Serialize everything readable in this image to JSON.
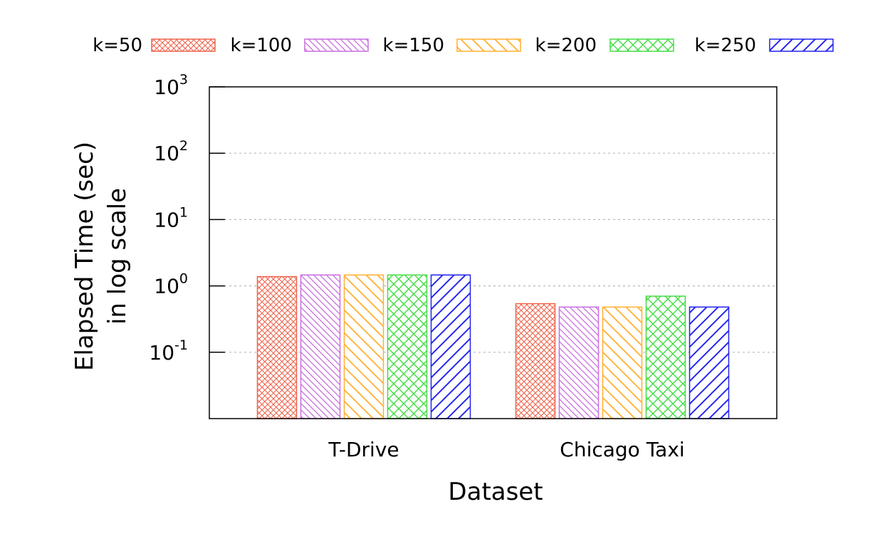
{
  "chart_data": {
    "type": "bar",
    "xlabel": "Dataset",
    "ylabel": "Elapsed Time (sec)",
    "ylabel2": "in log scale",
    "y_scale": "log",
    "ylim": [
      0.01,
      1000
    ],
    "ytick_labels": [
      {
        "base": "10",
        "exp": "-1",
        "value": 0.1
      },
      {
        "base": "10",
        "exp": "0",
        "value": 1
      },
      {
        "base": "10",
        "exp": "1",
        "value": 10
      },
      {
        "base": "10",
        "exp": "2",
        "value": 100
      },
      {
        "base": "10",
        "exp": "3",
        "value": 1000
      }
    ],
    "grid": "horizontal dotted",
    "legend_position": "top",
    "categories": [
      "T-Drive",
      "Chicago Taxi"
    ],
    "series": [
      {
        "name": "k=50",
        "values": [
          1.38,
          0.54
        ],
        "color": "#f0644b",
        "pattern": "crosshatch-fine"
      },
      {
        "name": "k=100",
        "values": [
          1.46,
          0.48
        ],
        "color": "#c86ee0",
        "pattern": "diagonal-back-fine"
      },
      {
        "name": "k=150",
        "values": [
          1.46,
          0.48
        ],
        "color": "#ffb030",
        "pattern": "diagonal-back-wide"
      },
      {
        "name": "k=200",
        "values": [
          1.46,
          0.7
        ],
        "color": "#44dd44",
        "pattern": "crosshatch-wide"
      },
      {
        "name": "k=250",
        "values": [
          1.46,
          0.48
        ],
        "color": "#2222ee",
        "pattern": "diagonal-forward-wide"
      }
    ]
  }
}
